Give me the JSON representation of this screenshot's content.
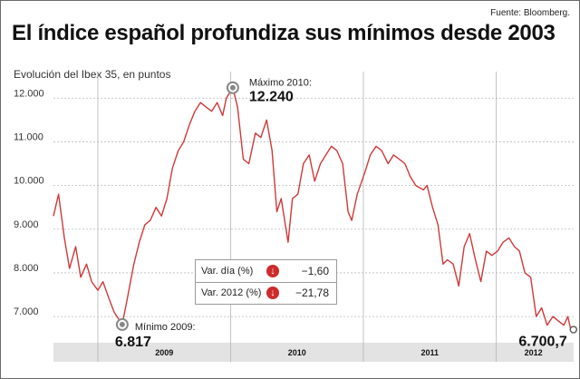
{
  "source": "Fuente: Bloomberg.",
  "title": "El índice español profundiza sus mínimos desde 2003",
  "subtitle": "Evolución del Ibex 35, en puntos",
  "colors": {
    "line": "#d0393a",
    "badge": "#cf2a2a",
    "grid": "#bbbbbb",
    "year_band": "#e3e3e3"
  },
  "chart_data": {
    "type": "line",
    "title": "El índice español profundiza sus mínimos desde 2003",
    "ylabel": "Evolución del Ibex 35, en puntos",
    "ylim": [
      6400,
      12400
    ],
    "yticks": [
      {
        "value": 12000,
        "label": "12.000"
      },
      {
        "value": 11000,
        "label": "11.000"
      },
      {
        "value": 10000,
        "label": "10.000"
      },
      {
        "value": 9000,
        "label": "9.000"
      },
      {
        "value": 8000,
        "label": "8.000"
      },
      {
        "value": 7000,
        "label": "7.000"
      }
    ],
    "x_range": [
      "2008-09-01",
      "2012-08-01"
    ],
    "xticks": [
      {
        "label": "2009",
        "start": "2009-01-01",
        "end": "2010-01-01"
      },
      {
        "label": "2010",
        "start": "2010-01-01",
        "end": "2011-01-01"
      },
      {
        "label": "2011",
        "start": "2011-01-01",
        "end": "2012-01-01"
      },
      {
        "label": "2012",
        "start": "2012-01-01",
        "end": "2012-07-24"
      }
    ],
    "grid": true,
    "series": [
      {
        "points": [
          [
            "2008-09-01",
            9300
          ],
          [
            "2008-09-15",
            9800
          ],
          [
            "2008-10-01",
            8800
          ],
          [
            "2008-10-15",
            8100
          ],
          [
            "2008-11-01",
            8600
          ],
          [
            "2008-11-15",
            7900
          ],
          [
            "2008-12-01",
            8200
          ],
          [
            "2008-12-15",
            7800
          ],
          [
            "2009-01-01",
            7600
          ],
          [
            "2009-01-15",
            7800
          ],
          [
            "2009-02-01",
            7400
          ],
          [
            "2009-02-15",
            7100
          ],
          [
            "2009-03-09",
            6817
          ],
          [
            "2009-03-25",
            7500
          ],
          [
            "2009-04-10",
            8200
          ],
          [
            "2009-04-25",
            8700
          ],
          [
            "2009-05-10",
            9100
          ],
          [
            "2009-05-25",
            9200
          ],
          [
            "2009-06-10",
            9500
          ],
          [
            "2009-06-25",
            9300
          ],
          [
            "2009-07-10",
            9700
          ],
          [
            "2009-07-25",
            10400
          ],
          [
            "2009-08-10",
            10800
          ],
          [
            "2009-08-25",
            11000
          ],
          [
            "2009-09-10",
            11400
          ],
          [
            "2009-09-25",
            11700
          ],
          [
            "2009-10-10",
            11900
          ],
          [
            "2009-10-25",
            11800
          ],
          [
            "2009-11-10",
            11700
          ],
          [
            "2009-11-25",
            11900
          ],
          [
            "2009-12-10",
            11600
          ],
          [
            "2009-12-20",
            12000
          ],
          [
            "2010-01-07",
            12240
          ],
          [
            "2010-01-20",
            11800
          ],
          [
            "2010-02-05",
            10600
          ],
          [
            "2010-02-20",
            10500
          ],
          [
            "2010-03-10",
            11200
          ],
          [
            "2010-03-25",
            11100
          ],
          [
            "2010-04-10",
            11500
          ],
          [
            "2010-04-25",
            10800
          ],
          [
            "2010-05-08",
            9400
          ],
          [
            "2010-05-20",
            9700
          ],
          [
            "2010-06-08",
            8700
          ],
          [
            "2010-06-20",
            9700
          ],
          [
            "2010-07-05",
            9800
          ],
          [
            "2010-07-20",
            10500
          ],
          [
            "2010-08-05",
            10700
          ],
          [
            "2010-08-20",
            10100
          ],
          [
            "2010-09-05",
            10500
          ],
          [
            "2010-09-20",
            10700
          ],
          [
            "2010-10-05",
            10900
          ],
          [
            "2010-10-20",
            10800
          ],
          [
            "2010-11-05",
            10500
          ],
          [
            "2010-11-20",
            9400
          ],
          [
            "2010-11-30",
            9200
          ],
          [
            "2010-12-15",
            9800
          ],
          [
            "2011-01-05",
            10300
          ],
          [
            "2011-01-20",
            10700
          ],
          [
            "2011-02-05",
            10900
          ],
          [
            "2011-02-20",
            10800
          ],
          [
            "2011-03-10",
            10500
          ],
          [
            "2011-03-25",
            10700
          ],
          [
            "2011-04-10",
            10600
          ],
          [
            "2011-04-25",
            10500
          ],
          [
            "2011-05-10",
            10200
          ],
          [
            "2011-05-25",
            10000
          ],
          [
            "2011-06-15",
            9900
          ],
          [
            "2011-06-25",
            10000
          ],
          [
            "2011-07-10",
            9500
          ],
          [
            "2011-07-25",
            9100
          ],
          [
            "2011-08-08",
            8200
          ],
          [
            "2011-08-20",
            8300
          ],
          [
            "2011-09-05",
            8200
          ],
          [
            "2011-09-20",
            7700
          ],
          [
            "2011-10-05",
            8600
          ],
          [
            "2011-10-20",
            8900
          ],
          [
            "2011-11-05",
            8300
          ],
          [
            "2011-11-20",
            7800
          ],
          [
            "2011-12-05",
            8500
          ],
          [
            "2011-12-20",
            8400
          ],
          [
            "2012-01-05",
            8500
          ],
          [
            "2012-01-20",
            8700
          ],
          [
            "2012-02-05",
            8800
          ],
          [
            "2012-02-20",
            8600
          ],
          [
            "2012-03-05",
            8500
          ],
          [
            "2012-03-20",
            8000
          ],
          [
            "2012-04-05",
            7900
          ],
          [
            "2012-04-20",
            7000
          ],
          [
            "2012-05-05",
            7200
          ],
          [
            "2012-05-20",
            6800
          ],
          [
            "2012-06-05",
            7000
          ],
          [
            "2012-06-20",
            6900
          ],
          [
            "2012-07-05",
            6800
          ],
          [
            "2012-07-16",
            7000
          ],
          [
            "2012-07-24",
            6700.7
          ]
        ]
      }
    ],
    "annotations": [
      {
        "label": "Máximo 2010:",
        "value": "12.240",
        "x": "2010-01-07",
        "y": 12240
      },
      {
        "label": "Mínimo 2009:",
        "value": "6.817",
        "x": "2009-03-09",
        "y": 6817
      },
      {
        "label": "",
        "value": "6.700,7",
        "x": "2012-07-24",
        "y": 6700.7
      }
    ]
  },
  "variations": [
    {
      "label": "Var. día (%)",
      "icon": "down-arrow-icon",
      "value": "−1,60"
    },
    {
      "label": "Var. 2012 (%)",
      "icon": "down-arrow-icon",
      "value": "−21,78"
    }
  ]
}
